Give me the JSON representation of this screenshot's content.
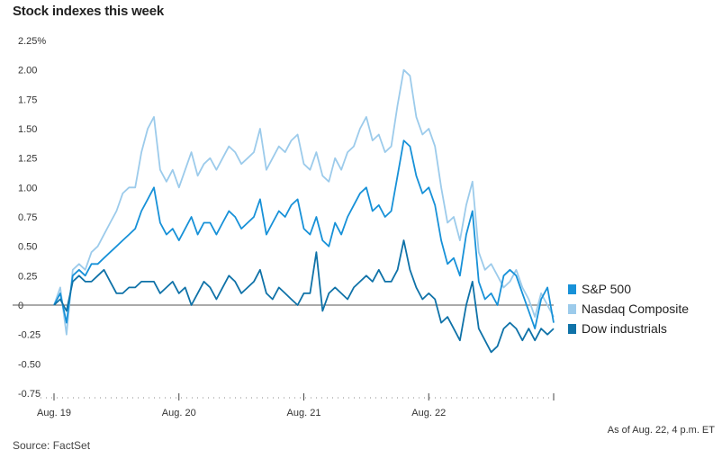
{
  "title": "Stock indexes this week",
  "asof": "As of Aug. 22, 4 p.m. ET",
  "source": "Source: FactSet",
  "chart_data": {
    "type": "line",
    "title": "Stock indexes this week",
    "xlabel": "",
    "ylabel": "",
    "x_tick_labels": [
      "Aug. 19",
      "Aug. 20",
      "Aug. 21",
      "Aug. 22",
      ""
    ],
    "x_ticks": [
      0,
      1,
      2,
      3,
      4
    ],
    "y_tick_labels": [
      "2.25%",
      "2.00",
      "1.75",
      "1.50",
      "1.25",
      "1.00",
      "0.75",
      "0.50",
      "0.25",
      "0",
      "-0.25",
      "-0.50",
      "-0.75"
    ],
    "y_ticks": [
      2.25,
      2.0,
      1.75,
      1.5,
      1.25,
      1.0,
      0.75,
      0.5,
      0.25,
      0,
      -0.25,
      -0.5,
      -0.75
    ],
    "xlim": [
      0,
      4
    ],
    "ylim": [
      -0.75,
      2.25
    ],
    "grid": "none",
    "zero_line": true,
    "legend_placement": "right",
    "series": [
      {
        "name": "Nasdaq Composite",
        "color": "#9ccbeb",
        "x": [
          0,
          0.05,
          0.1,
          0.15,
          0.2,
          0.25,
          0.3,
          0.35,
          0.4,
          0.45,
          0.5,
          0.55,
          0.6,
          0.65,
          0.7,
          0.75,
          0.8,
          0.85,
          0.9,
          0.95,
          1.0,
          1.05,
          1.1,
          1.15,
          1.2,
          1.25,
          1.3,
          1.35,
          1.4,
          1.45,
          1.5,
          1.55,
          1.6,
          1.65,
          1.7,
          1.75,
          1.8,
          1.85,
          1.9,
          1.95,
          2.0,
          2.05,
          2.1,
          2.15,
          2.2,
          2.25,
          2.3,
          2.35,
          2.4,
          2.45,
          2.5,
          2.55,
          2.6,
          2.65,
          2.7,
          2.75,
          2.8,
          2.85,
          2.9,
          2.95,
          3.0,
          3.05,
          3.1,
          3.15,
          3.2,
          3.25,
          3.3,
          3.35,
          3.4,
          3.45,
          3.5,
          3.55,
          3.6,
          3.65,
          3.7,
          3.75,
          3.8,
          3.85,
          3.9,
          3.95,
          4.0
        ],
        "y": [
          0.0,
          0.15,
          -0.25,
          0.3,
          0.35,
          0.3,
          0.45,
          0.5,
          0.6,
          0.7,
          0.8,
          0.95,
          1.0,
          1.0,
          1.3,
          1.5,
          1.6,
          1.15,
          1.05,
          1.15,
          1.0,
          1.15,
          1.3,
          1.1,
          1.2,
          1.25,
          1.15,
          1.25,
          1.35,
          1.3,
          1.2,
          1.25,
          1.3,
          1.5,
          1.15,
          1.25,
          1.35,
          1.3,
          1.4,
          1.45,
          1.2,
          1.15,
          1.3,
          1.1,
          1.05,
          1.25,
          1.15,
          1.3,
          1.35,
          1.5,
          1.6,
          1.4,
          1.45,
          1.3,
          1.35,
          1.7,
          2.0,
          1.95,
          1.6,
          1.45,
          1.5,
          1.35,
          1.0,
          0.7,
          0.75,
          0.55,
          0.85,
          1.05,
          0.45,
          0.3,
          0.35,
          0.25,
          0.15,
          0.2,
          0.3,
          0.15,
          0.05,
          -0.1,
          0.1,
          0.0,
          -0.1
        ]
      },
      {
        "name": "S&P 500",
        "color": "#1791d8",
        "x": [
          0,
          0.05,
          0.1,
          0.15,
          0.2,
          0.25,
          0.3,
          0.35,
          0.4,
          0.45,
          0.5,
          0.55,
          0.6,
          0.65,
          0.7,
          0.75,
          0.8,
          0.85,
          0.9,
          0.95,
          1.0,
          1.05,
          1.1,
          1.15,
          1.2,
          1.25,
          1.3,
          1.35,
          1.4,
          1.45,
          1.5,
          1.55,
          1.6,
          1.65,
          1.7,
          1.75,
          1.8,
          1.85,
          1.9,
          1.95,
          2.0,
          2.05,
          2.1,
          2.15,
          2.2,
          2.25,
          2.3,
          2.35,
          2.4,
          2.45,
          2.5,
          2.55,
          2.6,
          2.65,
          2.7,
          2.75,
          2.8,
          2.85,
          2.9,
          2.95,
          3.0,
          3.05,
          3.1,
          3.15,
          3.2,
          3.25,
          3.3,
          3.35,
          3.4,
          3.45,
          3.5,
          3.55,
          3.6,
          3.65,
          3.7,
          3.75,
          3.8,
          3.85,
          3.9,
          3.95,
          4.0
        ],
        "y": [
          0.0,
          0.1,
          -0.15,
          0.25,
          0.3,
          0.25,
          0.35,
          0.35,
          0.4,
          0.45,
          0.5,
          0.55,
          0.6,
          0.65,
          0.8,
          0.9,
          1.0,
          0.7,
          0.6,
          0.65,
          0.55,
          0.65,
          0.75,
          0.6,
          0.7,
          0.7,
          0.6,
          0.7,
          0.8,
          0.75,
          0.65,
          0.7,
          0.75,
          0.9,
          0.6,
          0.7,
          0.8,
          0.75,
          0.85,
          0.9,
          0.65,
          0.6,
          0.75,
          0.55,
          0.5,
          0.7,
          0.6,
          0.75,
          0.85,
          0.95,
          1.0,
          0.8,
          0.85,
          0.75,
          0.8,
          1.1,
          1.4,
          1.35,
          1.1,
          0.95,
          1.0,
          0.85,
          0.55,
          0.35,
          0.4,
          0.25,
          0.6,
          0.8,
          0.2,
          0.05,
          0.1,
          0.0,
          0.25,
          0.3,
          0.25,
          0.1,
          -0.05,
          -0.2,
          0.05,
          0.15,
          -0.15
        ]
      },
      {
        "name": "Dow industrials",
        "color": "#0f72a8",
        "x": [
          0,
          0.05,
          0.1,
          0.15,
          0.2,
          0.25,
          0.3,
          0.35,
          0.4,
          0.45,
          0.5,
          0.55,
          0.6,
          0.65,
          0.7,
          0.75,
          0.8,
          0.85,
          0.9,
          0.95,
          1.0,
          1.05,
          1.1,
          1.15,
          1.2,
          1.25,
          1.3,
          1.35,
          1.4,
          1.45,
          1.5,
          1.55,
          1.6,
          1.65,
          1.7,
          1.75,
          1.8,
          1.85,
          1.9,
          1.95,
          2.0,
          2.05,
          2.1,
          2.15,
          2.2,
          2.25,
          2.3,
          2.35,
          2.4,
          2.45,
          2.5,
          2.55,
          2.6,
          2.65,
          2.7,
          2.75,
          2.8,
          2.85,
          2.9,
          2.95,
          3.0,
          3.05,
          3.1,
          3.15,
          3.2,
          3.25,
          3.3,
          3.35,
          3.4,
          3.45,
          3.5,
          3.55,
          3.6,
          3.65,
          3.7,
          3.75,
          3.8,
          3.85,
          3.9,
          3.95,
          4.0
        ],
        "y": [
          0.0,
          0.05,
          -0.05,
          0.2,
          0.25,
          0.2,
          0.2,
          0.25,
          0.3,
          0.2,
          0.1,
          0.1,
          0.15,
          0.15,
          0.2,
          0.2,
          0.2,
          0.1,
          0.15,
          0.2,
          0.1,
          0.15,
          0.0,
          0.1,
          0.2,
          0.15,
          0.05,
          0.15,
          0.25,
          0.2,
          0.1,
          0.15,
          0.2,
          0.3,
          0.1,
          0.05,
          0.15,
          0.1,
          0.05,
          0.0,
          0.1,
          0.1,
          0.45,
          -0.05,
          0.1,
          0.15,
          0.1,
          0.05,
          0.15,
          0.2,
          0.25,
          0.2,
          0.3,
          0.2,
          0.2,
          0.3,
          0.55,
          0.3,
          0.15,
          0.05,
          0.1,
          0.05,
          -0.15,
          -0.1,
          -0.2,
          -0.3,
          0.0,
          0.2,
          -0.2,
          -0.3,
          -0.4,
          -0.35,
          -0.2,
          -0.15,
          -0.2,
          -0.3,
          -0.2,
          -0.3,
          -0.2,
          -0.25,
          -0.2
        ]
      }
    ],
    "legend_order": [
      "S&P 500",
      "Nasdaq Composite",
      "Dow industrials"
    ]
  }
}
